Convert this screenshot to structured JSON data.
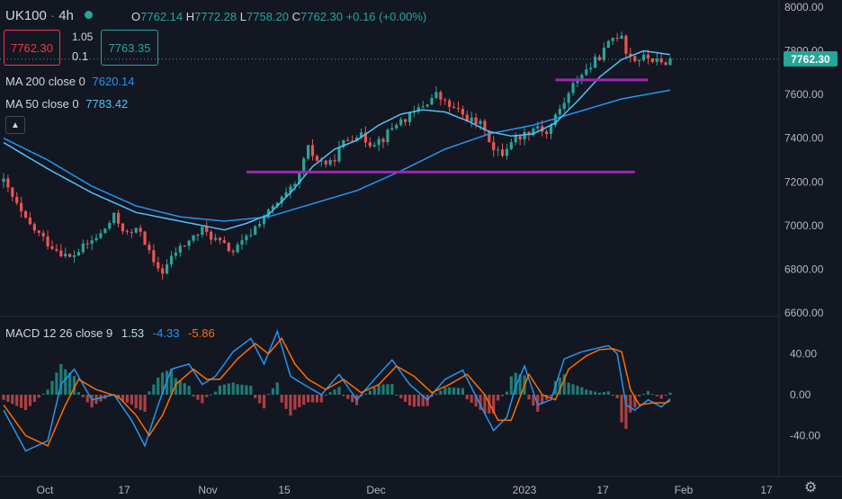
{
  "header": {
    "symbol": "UK100",
    "interval": "4h",
    "ohlc": {
      "o_label": "O",
      "o": "7762.14",
      "h_label": "H",
      "h": "7772.28",
      "l_label": "L",
      "l": "7758.20",
      "c_label": "C",
      "c": "7762.30",
      "change": "+0.16 (+0.00%)"
    }
  },
  "trade": {
    "sell_price": "7762.30",
    "spread": "1.05",
    "quantity": "0.1",
    "buy_price": "7763.35"
  },
  "indicators": {
    "ma200_label": "MA 200 close 0",
    "ma200_value": "7620.14",
    "ma50_label": "MA 50 close 0",
    "ma50_value": "7783.42",
    "macd_label": "MACD 12 26 close 9",
    "macd_hist": "1.53",
    "macd_line": "-4.33",
    "macd_signal": "-5.86"
  },
  "colors": {
    "background": "#131722",
    "up": "#26a69a",
    "down": "#ef5350",
    "ma200": "#2196f3",
    "ma50": "#4fc3f7",
    "support": "#9c27b0",
    "macd_line": "#2196f3",
    "signal_line": "#ff6d00"
  },
  "icons": {
    "collapse": "chevron-up-icon",
    "settings": "gear-icon"
  },
  "chart_data": [
    {
      "type": "candlestick",
      "last_price": "7762.30",
      "y_ticks": [
        "8000.00",
        "7800.00",
        "7600.00",
        "7400.00",
        "7200.00",
        "7000.00",
        "6800.00",
        "6600.00"
      ],
      "ylim": [
        6600,
        8000
      ],
      "x_ticks": [
        "Oct",
        "17",
        "Nov",
        "15",
        "Dec",
        "2023",
        "17",
        "Feb",
        "17"
      ],
      "price_path": [
        [
          0,
          7200
        ],
        [
          5,
          7020
        ],
        [
          10,
          6920
        ],
        [
          15,
          6850
        ],
        [
          18,
          6900
        ],
        [
          22,
          6960
        ],
        [
          25,
          7040
        ],
        [
          28,
          6960
        ],
        [
          31,
          6980
        ],
        [
          34,
          6820
        ],
        [
          36,
          6790
        ],
        [
          39,
          6880
        ],
        [
          42,
          6930
        ],
        [
          45,
          6980
        ],
        [
          49,
          6920
        ],
        [
          52,
          6880
        ],
        [
          55,
          6940
        ],
        [
          58,
          7020
        ],
        [
          62,
          7100
        ],
        [
          66,
          7180
        ],
        [
          69,
          7350
        ],
        [
          71,
          7300
        ],
        [
          74,
          7280
        ],
        [
          77,
          7380
        ],
        [
          80,
          7420
        ],
        [
          83,
          7380
        ],
        [
          86,
          7400
        ],
        [
          89,
          7470
        ],
        [
          92,
          7500
        ],
        [
          95,
          7550
        ],
        [
          98,
          7600
        ],
        [
          100,
          7560
        ],
        [
          103,
          7520
        ],
        [
          106,
          7480
        ],
        [
          109,
          7450
        ],
        [
          111,
          7340
        ],
        [
          113,
          7330
        ],
        [
          115,
          7390
        ],
        [
          118,
          7420
        ],
        [
          121,
          7460
        ],
        [
          123,
          7420
        ],
        [
          125,
          7500
        ],
        [
          128,
          7600
        ],
        [
          130,
          7680
        ],
        [
          133,
          7730
        ],
        [
          136,
          7800
        ],
        [
          138,
          7860
        ],
        [
          140,
          7880
        ],
        [
          141,
          7800
        ],
        [
          143,
          7760
        ],
        [
          146,
          7770
        ],
        [
          149,
          7740
        ],
        [
          151,
          7762
        ]
      ],
      "ma50_path": [
        [
          0,
          7380
        ],
        [
          10,
          7260
        ],
        [
          20,
          7150
        ],
        [
          30,
          7060
        ],
        [
          40,
          7020
        ],
        [
          50,
          6980
        ],
        [
          55,
          7010
        ],
        [
          60,
          7050
        ],
        [
          65,
          7150
        ],
        [
          70,
          7270
        ],
        [
          75,
          7350
        ],
        [
          80,
          7390
        ],
        [
          85,
          7460
        ],
        [
          90,
          7510
        ],
        [
          95,
          7530
        ],
        [
          100,
          7520
        ],
        [
          105,
          7480
        ],
        [
          110,
          7430
        ],
        [
          115,
          7410
        ],
        [
          120,
          7420
        ],
        [
          125,
          7470
        ],
        [
          130,
          7570
        ],
        [
          135,
          7680
        ],
        [
          140,
          7760
        ],
        [
          145,
          7800
        ],
        [
          151,
          7783
        ]
      ],
      "ma200_path": [
        [
          0,
          7400
        ],
        [
          10,
          7300
        ],
        [
          20,
          7180
        ],
        [
          30,
          7090
        ],
        [
          40,
          7040
        ],
        [
          50,
          7020
        ],
        [
          60,
          7040
        ],
        [
          70,
          7100
        ],
        [
          80,
          7160
        ],
        [
          90,
          7250
        ],
        [
          100,
          7350
        ],
        [
          110,
          7420
        ],
        [
          120,
          7460
        ],
        [
          130,
          7520
        ],
        [
          140,
          7580
        ],
        [
          151,
          7620
        ]
      ],
      "support_lines": [
        {
          "from": 55,
          "to": 143,
          "value": 7245
        },
        {
          "from": 125,
          "to": 146,
          "value": 7667
        }
      ]
    },
    {
      "type": "macd",
      "y_ticks": [
        "40.00",
        "0.00",
        "-40.00"
      ],
      "ylim": [
        -62,
        72
      ],
      "macd_path": [
        [
          0,
          -15
        ],
        [
          5,
          -55
        ],
        [
          10,
          -45
        ],
        [
          13,
          10
        ],
        [
          16,
          25
        ],
        [
          20,
          -5
        ],
        [
          25,
          0
        ],
        [
          29,
          -25
        ],
        [
          32,
          -50
        ],
        [
          35,
          -10
        ],
        [
          38,
          25
        ],
        [
          42,
          30
        ],
        [
          45,
          10
        ],
        [
          48,
          18
        ],
        [
          52,
          42
        ],
        [
          56,
          55
        ],
        [
          59,
          30
        ],
        [
          62,
          62
        ],
        [
          65,
          18
        ],
        [
          68,
          10
        ],
        [
          72,
          0
        ],
        [
          76,
          20
        ],
        [
          80,
          -5
        ],
        [
          84,
          15
        ],
        [
          88,
          34
        ],
        [
          92,
          10
        ],
        [
          96,
          -5
        ],
        [
          100,
          15
        ],
        [
          104,
          24
        ],
        [
          108,
          -10
        ],
        [
          111,
          -35
        ],
        [
          114,
          -22
        ],
        [
          116,
          8
        ],
        [
          118,
          28
        ],
        [
          121,
          -10
        ],
        [
          124,
          -5
        ],
        [
          127,
          35
        ],
        [
          131,
          42
        ],
        [
          134,
          45
        ],
        [
          137,
          48
        ],
        [
          139,
          40
        ],
        [
          141,
          -10
        ],
        [
          143,
          -15
        ],
        [
          146,
          -5
        ],
        [
          149,
          -12
        ],
        [
          151,
          -4
        ]
      ],
      "signal_path": [
        [
          0,
          -10
        ],
        [
          5,
          -40
        ],
        [
          10,
          -50
        ],
        [
          14,
          -10
        ],
        [
          17,
          15
        ],
        [
          21,
          5
        ],
        [
          26,
          -2
        ],
        [
          30,
          -20
        ],
        [
          33,
          -40
        ],
        [
          36,
          -20
        ],
        [
          39,
          10
        ],
        [
          43,
          25
        ],
        [
          46,
          15
        ],
        [
          49,
          15
        ],
        [
          53,
          35
        ],
        [
          57,
          50
        ],
        [
          60,
          40
        ],
        [
          63,
          55
        ],
        [
          66,
          30
        ],
        [
          69,
          15
        ],
        [
          73,
          5
        ],
        [
          77,
          15
        ],
        [
          81,
          2
        ],
        [
          85,
          10
        ],
        [
          89,
          28
        ],
        [
          93,
          18
        ],
        [
          97,
          2
        ],
        [
          101,
          10
        ],
        [
          105,
          20
        ],
        [
          109,
          0
        ],
        [
          112,
          -25
        ],
        [
          115,
          -25
        ],
        [
          117,
          -2
        ],
        [
          119,
          20
        ],
        [
          122,
          0
        ],
        [
          125,
          -5
        ],
        [
          128,
          25
        ],
        [
          132,
          38
        ],
        [
          135,
          44
        ],
        [
          138,
          45
        ],
        [
          140,
          42
        ],
        [
          142,
          5
        ],
        [
          144,
          -10
        ],
        [
          147,
          -8
        ],
        [
          150,
          -8
        ],
        [
          151,
          -6
        ]
      ]
    }
  ]
}
